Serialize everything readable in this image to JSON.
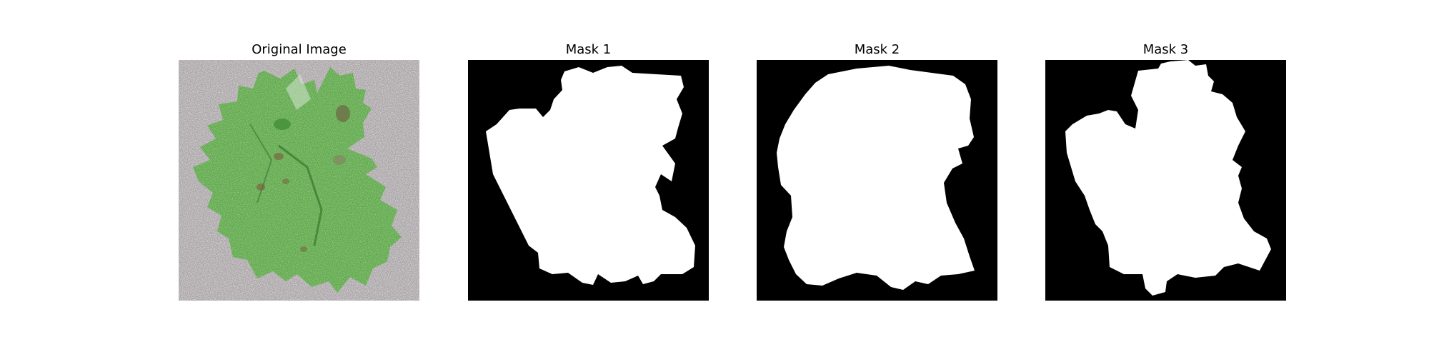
{
  "panels": [
    {
      "title": "Original Image"
    },
    {
      "title": "Mask 1"
    },
    {
      "title": "Mask 2"
    },
    {
      "title": "Mask 3"
    }
  ],
  "colors": {
    "background": "#ffffff",
    "mask_background": "#000000",
    "mask_foreground": "#ffffff",
    "leaf_green": "#4f9a3c",
    "leaf_light": "#cfe3c2",
    "surface_gray": "#a59fa2"
  }
}
